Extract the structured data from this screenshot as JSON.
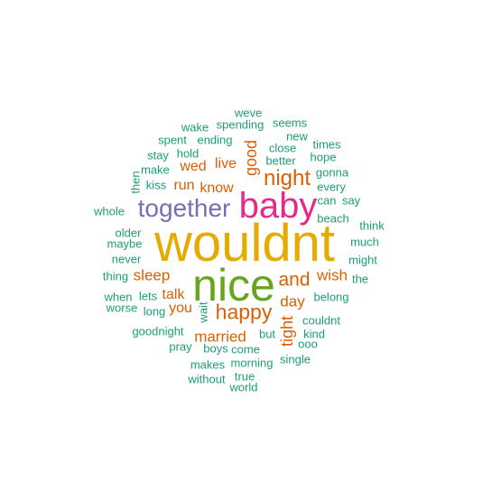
{
  "colors": {
    "teal": "#1b9e77",
    "orange": "#d95f02",
    "purple": "#7570b3",
    "magenta": "#e7298a",
    "green": "#66a61e",
    "gold": "#e6ab02"
  },
  "words": [
    {
      "text": "wouldnt",
      "color": "gold"
    },
    {
      "text": "nice",
      "color": "green"
    },
    {
      "text": "baby",
      "color": "magenta"
    },
    {
      "text": "together",
      "color": "purple"
    },
    {
      "text": "night",
      "color": "orange"
    },
    {
      "text": "happy",
      "color": "orange"
    },
    {
      "text": "and",
      "color": "orange"
    },
    {
      "text": "good",
      "color": "orange"
    },
    {
      "text": "tight",
      "color": "orange"
    },
    {
      "text": "sleep",
      "color": "orange"
    },
    {
      "text": "wish",
      "color": "orange"
    },
    {
      "text": "married",
      "color": "orange"
    },
    {
      "text": "day",
      "color": "orange"
    },
    {
      "text": "talk",
      "color": "orange"
    },
    {
      "text": "you",
      "color": "orange"
    },
    {
      "text": "wed",
      "color": "orange"
    },
    {
      "text": "live",
      "color": "orange"
    },
    {
      "text": "run",
      "color": "orange"
    },
    {
      "text": "know",
      "color": "orange"
    },
    {
      "text": "weve",
      "color": "teal"
    },
    {
      "text": "wake",
      "color": "teal"
    },
    {
      "text": "spending",
      "color": "teal"
    },
    {
      "text": "seems",
      "color": "teal"
    },
    {
      "text": "spent",
      "color": "teal"
    },
    {
      "text": "ending",
      "color": "teal"
    },
    {
      "text": "new",
      "color": "teal"
    },
    {
      "text": "times",
      "color": "teal"
    },
    {
      "text": "stay",
      "color": "teal"
    },
    {
      "text": "hold",
      "color": "teal"
    },
    {
      "text": "close",
      "color": "teal"
    },
    {
      "text": "hope",
      "color": "teal"
    },
    {
      "text": "make",
      "color": "teal"
    },
    {
      "text": "better",
      "color": "teal"
    },
    {
      "text": "gonna",
      "color": "teal"
    },
    {
      "text": "then",
      "color": "teal"
    },
    {
      "text": "kiss",
      "color": "teal"
    },
    {
      "text": "every",
      "color": "teal"
    },
    {
      "text": "can",
      "color": "teal"
    },
    {
      "text": "say",
      "color": "teal"
    },
    {
      "text": "whole",
      "color": "teal"
    },
    {
      "text": "beach",
      "color": "teal"
    },
    {
      "text": "think",
      "color": "teal"
    },
    {
      "text": "older",
      "color": "teal"
    },
    {
      "text": "maybe",
      "color": "teal"
    },
    {
      "text": "much",
      "color": "teal"
    },
    {
      "text": "never",
      "color": "teal"
    },
    {
      "text": "might",
      "color": "teal"
    },
    {
      "text": "thing",
      "color": "teal"
    },
    {
      "text": "the",
      "color": "teal"
    },
    {
      "text": "when",
      "color": "teal"
    },
    {
      "text": "lets",
      "color": "teal"
    },
    {
      "text": "belong",
      "color": "teal"
    },
    {
      "text": "worse",
      "color": "teal"
    },
    {
      "text": "long",
      "color": "teal"
    },
    {
      "text": "wait",
      "color": "teal"
    },
    {
      "text": "couldnt",
      "color": "teal"
    },
    {
      "text": "goodnight",
      "color": "teal"
    },
    {
      "text": "but",
      "color": "teal"
    },
    {
      "text": "kind",
      "color": "teal"
    },
    {
      "text": "ooo",
      "color": "teal"
    },
    {
      "text": "pray",
      "color": "teal"
    },
    {
      "text": "boys",
      "color": "teal"
    },
    {
      "text": "come",
      "color": "teal"
    },
    {
      "text": "single",
      "color": "teal"
    },
    {
      "text": "makes",
      "color": "teal"
    },
    {
      "text": "morning",
      "color": "teal"
    },
    {
      "text": "without",
      "color": "teal"
    },
    {
      "text": "true",
      "color": "teal"
    },
    {
      "text": "world",
      "color": "teal"
    }
  ]
}
